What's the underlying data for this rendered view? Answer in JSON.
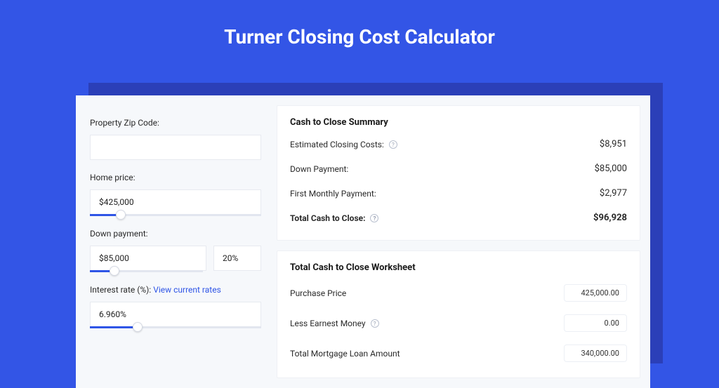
{
  "page": {
    "title": "Turner Closing Cost Calculator",
    "bg_color": "#3355e6",
    "card_shadow_color": "#2b3fb8",
    "card_bg": "#f6f8fb",
    "panel_bg": "#ffffff",
    "accent_color": "#2f55e6"
  },
  "inputs": {
    "zip": {
      "label": "Property Zip Code:",
      "value": ""
    },
    "home_price": {
      "label": "Home price:",
      "value": "$425,000",
      "slider_pct": 18
    },
    "down_payment": {
      "label": "Down payment:",
      "value": "$85,000",
      "pct": "20%",
      "slider_pct": 22
    },
    "interest_rate": {
      "label": "Interest rate (%): ",
      "link_text": "View current rates",
      "value": "6.960%",
      "slider_pct": 28
    }
  },
  "summary": {
    "title": "Cash to Close Summary",
    "rows": [
      {
        "label": "Estimated Closing Costs:",
        "has_help": true,
        "value": "$8,951",
        "bold": false
      },
      {
        "label": "Down Payment:",
        "has_help": false,
        "value": "$85,000",
        "bold": false
      },
      {
        "label": "First Monthly Payment:",
        "has_help": false,
        "value": "$2,977",
        "bold": false
      },
      {
        "label": "Total Cash to Close:",
        "has_help": true,
        "value": "$96,928",
        "bold": true
      }
    ]
  },
  "worksheet": {
    "title": "Total Cash to Close Worksheet",
    "rows": [
      {
        "label": "Purchase Price",
        "has_help": false,
        "value": "425,000.00"
      },
      {
        "label": "Less Earnest Money",
        "has_help": true,
        "value": "0.00"
      },
      {
        "label": "Total Mortgage Loan Amount",
        "has_help": false,
        "value": "340,000.00"
      }
    ]
  }
}
